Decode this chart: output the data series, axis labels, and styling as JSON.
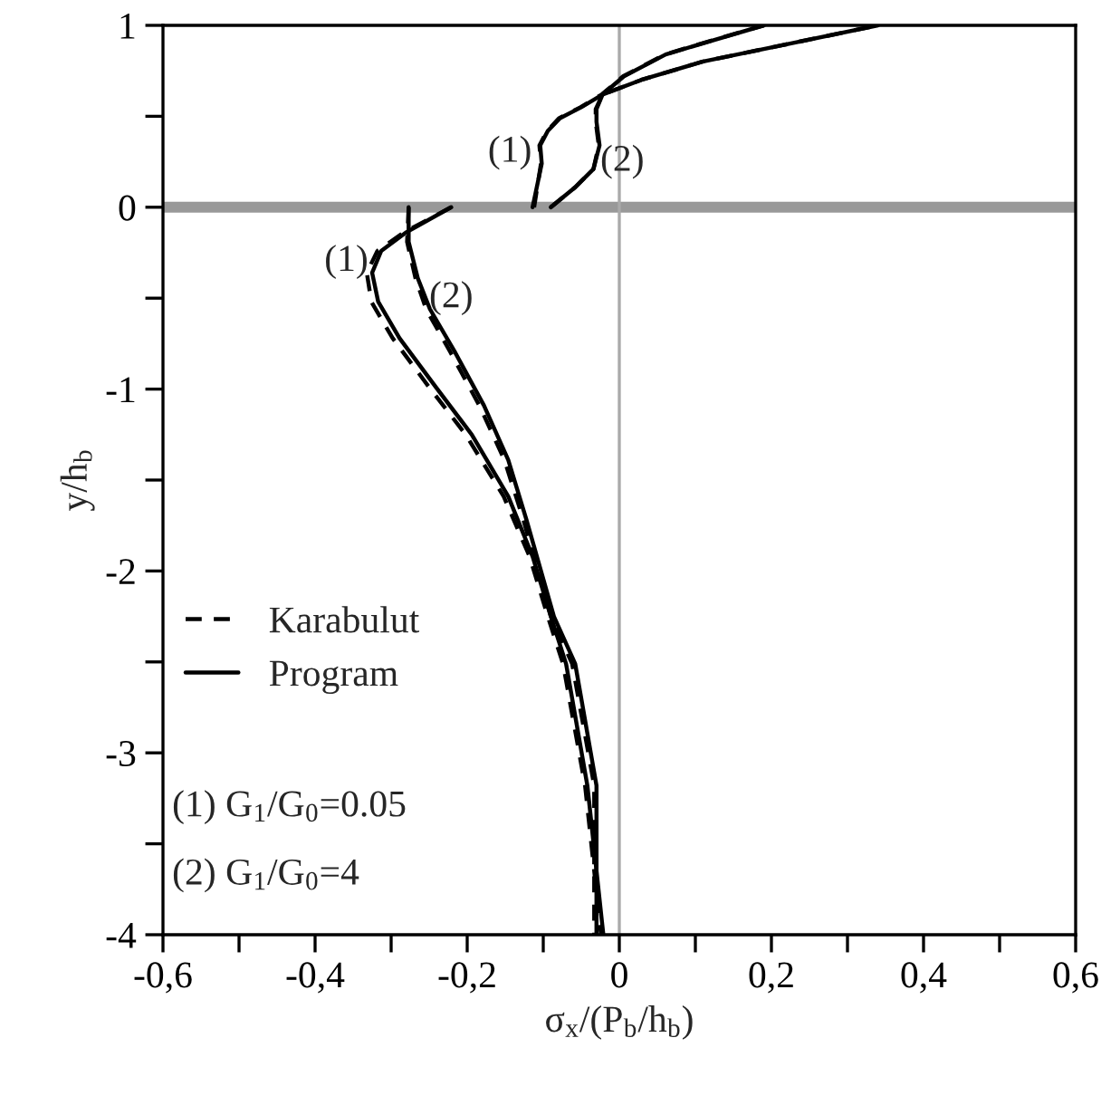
{
  "chart_data": {
    "type": "line",
    "xlabel": "σ$_{x}$/(P$_{b}$/h$_{b}$)",
    "ylabel": "y/h$_{b}$",
    "xlim": [
      -0.6,
      0.6
    ],
    "ylim": [
      -4,
      1
    ],
    "xticks": [
      {
        "value": -0.6,
        "label": "-0,6"
      },
      {
        "value": -0.5,
        "label": null
      },
      {
        "value": -0.4,
        "label": "-0,4"
      },
      {
        "value": -0.3,
        "label": null
      },
      {
        "value": -0.2,
        "label": "-0,2"
      },
      {
        "value": -0.1,
        "label": null
      },
      0,
      {
        "value": 0.1,
        "label": null
      },
      {
        "value": 0.2,
        "label": "0,2"
      },
      {
        "value": 0.3,
        "label": null
      },
      {
        "value": 0.4,
        "label": "0,4"
      },
      {
        "value": 0.5,
        "label": null
      },
      {
        "value": 0.6,
        "label": "0,6"
      }
    ],
    "yticks": [
      -4,
      {
        "value": -3.5,
        "label": null
      },
      -3,
      {
        "value": -2.5,
        "label": null
      },
      -2,
      {
        "value": -1.5,
        "label": null
      },
      -1,
      {
        "value": -0.5,
        "label": null
      },
      0,
      {
        "value": 0.5,
        "label": null
      },
      1
    ],
    "series": [
      {
        "name": "Karabulut",
        "color": "#000000",
        "line_style": "dashed",
        "x": [
          -0.112,
          -0.103,
          -0.105,
          -0.095,
          -0.079,
          -0.051,
          -0.023,
          0.005,
          0.06,
          0.124,
          0.19
        ],
        "values": [
          0.0,
          0.24,
          0.34,
          0.42,
          0.49,
          0.55,
          0.62,
          0.72,
          0.84,
          0.92,
          1.0
        ]
      },
      {
        "color": "#000000",
        "line_style": "dashed",
        "x": [
          -0.09,
          -0.058,
          -0.034,
          -0.027,
          -0.031,
          -0.031,
          -0.022,
          0.029,
          0.109,
          0.213,
          0.34
        ],
        "values": [
          0.0,
          0.11,
          0.21,
          0.34,
          0.47,
          0.54,
          0.62,
          0.7,
          0.8,
          0.89,
          1.0
        ]
      },
      {
        "color": "#000000",
        "line_style": "dashed",
        "x": [
          -0.221,
          -0.284,
          -0.318,
          -0.332,
          -0.326,
          -0.298,
          -0.25,
          -0.202,
          -0.152,
          -0.118,
          -0.094,
          -0.074,
          -0.045,
          -0.024
        ],
        "values": [
          0.0,
          -0.14,
          -0.24,
          -0.36,
          -0.52,
          -0.72,
          -0.99,
          -1.25,
          -1.59,
          -1.92,
          -2.25,
          -2.51,
          -3.18,
          -4.0
        ]
      },
      {
        "color": "#000000",
        "line_style": "dashed",
        "x": [
          -0.277,
          -0.279,
          -0.268,
          -0.254,
          -0.223,
          -0.184,
          -0.151,
          -0.126,
          -0.09,
          -0.062,
          -0.033,
          -0.033
        ],
        "values": [
          0.0,
          -0.19,
          -0.39,
          -0.56,
          -0.79,
          -1.09,
          -1.39,
          -1.72,
          -2.25,
          -2.51,
          -3.18,
          -4.0
        ]
      },
      {
        "name": "Program",
        "color": "#000000",
        "line_style": "solid",
        "x": [
          -0.114,
          -0.102,
          -0.104,
          -0.094,
          -0.078,
          -0.05,
          -0.022,
          0.006,
          0.061,
          0.125,
          0.19
        ],
        "values": [
          0.0,
          0.24,
          0.34,
          0.42,
          0.49,
          0.55,
          0.62,
          0.72,
          0.84,
          0.92,
          1.0
        ]
      },
      {
        "color": "#000000",
        "line_style": "solid",
        "x": [
          -0.09,
          -0.058,
          -0.034,
          -0.026,
          -0.03,
          -0.03,
          -0.022,
          0.029,
          0.109,
          0.213,
          0.34
        ],
        "values": [
          0.0,
          0.11,
          0.21,
          0.34,
          0.47,
          0.54,
          0.62,
          0.7,
          0.8,
          0.89,
          1.0
        ]
      },
      {
        "color": "#000000",
        "line_style": "solid",
        "x": [
          -0.221,
          -0.281,
          -0.313,
          -0.325,
          -0.317,
          -0.289,
          -0.241,
          -0.194,
          -0.146,
          -0.114,
          -0.09,
          -0.07,
          -0.042,
          -0.021
        ],
        "values": [
          0.0,
          -0.14,
          -0.24,
          -0.36,
          -0.52,
          -0.72,
          -0.99,
          -1.25,
          -1.59,
          -1.92,
          -2.25,
          -2.51,
          -3.18,
          -4.0
        ]
      },
      {
        "color": "#000000",
        "line_style": "solid",
        "x": [
          -0.277,
          -0.277,
          -0.265,
          -0.249,
          -0.217,
          -0.178,
          -0.146,
          -0.122,
          -0.086,
          -0.058,
          -0.03,
          -0.03
        ],
        "values": [
          0.0,
          -0.19,
          -0.39,
          -0.56,
          -0.79,
          -1.09,
          -1.39,
          -1.72,
          -2.25,
          -2.51,
          -3.18,
          -4.0
        ]
      }
    ],
    "ref_lines": [
      {
        "axis": "x",
        "value": 0,
        "color": "#aaaaaa"
      }
    ],
    "bands": [
      {
        "axis": "y",
        "from": -0.03,
        "to": 0.03,
        "color": "#999999"
      }
    ],
    "annotations": [
      {
        "text": "(1)",
        "x": -0.115,
        "y": 0.3
      },
      {
        "text": "(2)",
        "x": -0.025,
        "y": 0.25
      },
      {
        "text": "(1)",
        "x": -0.33,
        "y": -0.3
      },
      {
        "text": "(2)",
        "x": -0.25,
        "y": -0.5
      },
      "(1) G$_{1}$/G$_{0}$=0.05",
      "(2) G$_{1}$/G$_{0}$=4"
    ],
    "legend": "left",
    "grid": false
  }
}
